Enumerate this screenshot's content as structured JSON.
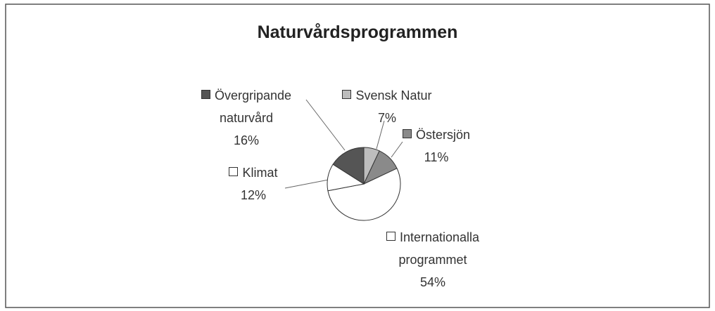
{
  "chart_data": {
    "type": "pie",
    "title": "Naturvårdsprogrammen",
    "categories": [
      "Svensk Natur",
      "Östersjön",
      "Internationalla programmet",
      "Klimat",
      "Övergripande naturvård"
    ],
    "values": [
      7,
      11,
      54,
      12,
      16
    ],
    "value_labels": [
      "7%",
      "11%",
      "54%",
      "12%",
      "16%"
    ],
    "colors": [
      "#bdbdbd",
      "#8a8a8a",
      "#ffffff",
      "#ffffff",
      "#555555"
    ]
  }
}
